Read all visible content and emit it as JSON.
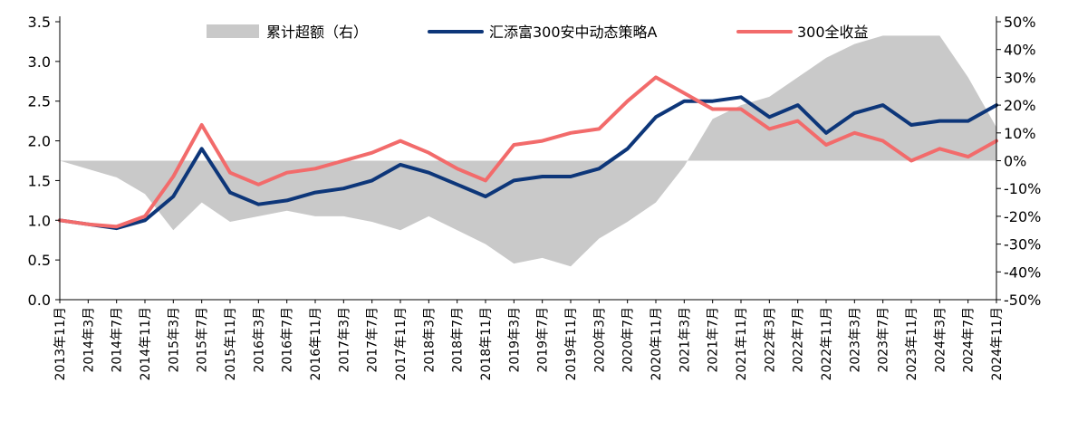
{
  "chart_data": {
    "type": "line",
    "title": "",
    "x_labels": [
      "2013年11月",
      "2014年3月",
      "2014年7月",
      "2014年11月",
      "2015年3月",
      "2015年7月",
      "2015年11月",
      "2016年3月",
      "2016年7月",
      "2016年11月",
      "2017年3月",
      "2017年7月",
      "2017年11月",
      "2018年3月",
      "2018年7月",
      "2018年11月",
      "2019年3月",
      "2019年7月",
      "2019年11月",
      "2020年3月",
      "2020年7月",
      "2020年11月",
      "2021年3月",
      "2021年7月",
      "2021年11月",
      "2022年3月",
      "2022年7月",
      "2022年11月",
      "2023年3月",
      "2023年7月",
      "2023年11月",
      "2024年3月",
      "2024年7月",
      "2024年11月"
    ],
    "left_axis": {
      "ylim": [
        0,
        3.5
      ],
      "ticks": [
        "0.0",
        "0.5",
        "1.0",
        "1.5",
        "2.0",
        "2.5",
        "3.0",
        "3.5"
      ]
    },
    "right_axis": {
      "ylim": [
        -50,
        50
      ],
      "ticks": [
        "-50%",
        "-40%",
        "-30%",
        "-20%",
        "-10%",
        "0%",
        "10%",
        "20%",
        "30%",
        "40%",
        "50%"
      ]
    },
    "series": [
      {
        "name": "累计超额（右）",
        "kind": "area",
        "axis": "right",
        "color": "#c9c9c9",
        "values": [
          0,
          -3,
          -6,
          -12,
          -25,
          -15,
          -22,
          -20,
          -18,
          -20,
          -20,
          -22,
          -25,
          -20,
          -25,
          -30,
          -37,
          -35,
          -38,
          -28,
          -22,
          -15,
          -2,
          15,
          20,
          23,
          30,
          37,
          42,
          45,
          45,
          45,
          30,
          12
        ]
      },
      {
        "name": "汇添富300安中动态策略A",
        "kind": "line",
        "axis": "left",
        "color": "#0d3679",
        "values": [
          1.0,
          0.95,
          0.9,
          1.0,
          1.3,
          1.9,
          1.35,
          1.2,
          1.25,
          1.35,
          1.4,
          1.5,
          1.7,
          1.6,
          1.45,
          1.3,
          1.5,
          1.55,
          1.55,
          1.65,
          1.9,
          2.3,
          2.5,
          2.5,
          2.55,
          2.3,
          2.45,
          2.1,
          2.35,
          2.45,
          2.2,
          2.25,
          2.25,
          2.45
        ]
      },
      {
        "name": "300全收益",
        "kind": "line",
        "axis": "left",
        "color": "#f26b6b",
        "values": [
          1.0,
          0.95,
          0.92,
          1.05,
          1.55,
          2.2,
          1.6,
          1.45,
          1.6,
          1.65,
          1.75,
          1.85,
          2.0,
          1.85,
          1.65,
          1.5,
          1.95,
          2.0,
          2.1,
          2.15,
          2.5,
          2.8,
          2.6,
          2.4,
          2.4,
          2.15,
          2.25,
          1.95,
          2.1,
          2.0,
          1.75,
          1.9,
          1.8,
          2.0
        ]
      }
    ]
  }
}
